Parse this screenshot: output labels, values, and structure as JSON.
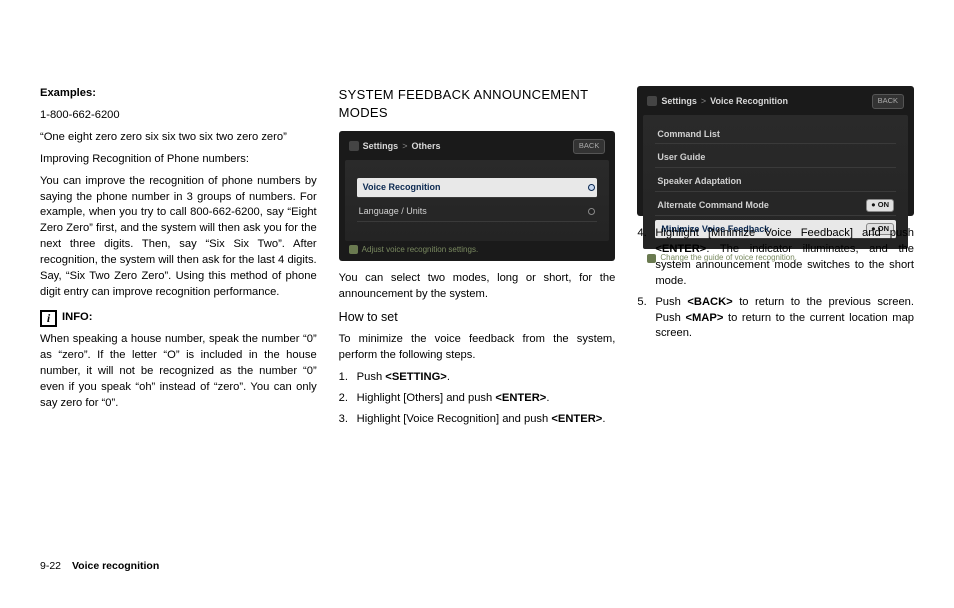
{
  "col1": {
    "examples_label": "Examples:",
    "phone_example": "1-800-662-6200",
    "phone_spoken": "“One eight zero zero six six two six two zero zero”",
    "improving_title": "Improving Recognition of Phone numbers:",
    "improving_body": "You can improve the recognition of phone numbers by saying the phone number in 3 groups of numbers. For example, when you try to call 800-662-6200, say “Eight Zero Zero” first, and the system will then ask you for the next three digits. Then, say “Six Six Two”. After recognition, the system will then ask for the last 4 digits. Say, “Six Two Zero Zero”. Using this method of phone digit entry can improve recognition performance.",
    "info_label": "INFO:",
    "info_body": "When speaking a house number, speak the number “0” as “zero”. If the letter “O” is included in the house number, it will not be recognized as the number “0” even if you speak “oh” instead of “zero”. You can only say zero for “0”."
  },
  "col2": {
    "heading": "SYSTEM FEEDBACK ANNOUNCEMENT MODES",
    "ss": {
      "path1": "Settings",
      "path2": "Others",
      "back": "BACK",
      "row_hi": "Voice Recognition",
      "row2": "Language / Units",
      "footer": "Adjust voice recognition settings."
    },
    "intro": "You can select two modes, long or short, for the announcement by the system.",
    "howto": "How to set",
    "howto_intro": "To minimize the voice feedback from the system, perform the following steps.",
    "steps": {
      "s1a": "Push ",
      "s1b": "<SETTING>",
      "s1c": ".",
      "s2a": "Highlight [Others] and push ",
      "s2b": "<ENTER>",
      "s2c": ".",
      "s3a": "Highlight [Voice Recognition] and push ",
      "s3b": "<ENTER>",
      "s3c": "."
    }
  },
  "col3": {
    "ss": {
      "path1": "Settings",
      "path2": "Voice Recognition",
      "back": "BACK",
      "rows": {
        "r1": "Command List",
        "r2": "User Guide",
        "r3": "Speaker Adaptation",
        "r4": "Alternate Command Mode",
        "r5": "Minimize Voice Feedback"
      },
      "on": "ON",
      "footer": "Change the guide of voice recognition."
    },
    "steps": {
      "s4a": "Highlight [Minimize Voice Feedback] and push ",
      "s4b": "<ENTER>",
      "s4c": ". The indicator illuminates, and the system announcement mode switches to the short mode.",
      "s5a": "Push ",
      "s5b": "<BACK>",
      "s5c": " to return to the previous screen. Push ",
      "s5d": "<MAP>",
      "s5e": " to return to the current location map screen."
    }
  },
  "footer": {
    "page": "9-22",
    "section": "Voice recognition"
  }
}
